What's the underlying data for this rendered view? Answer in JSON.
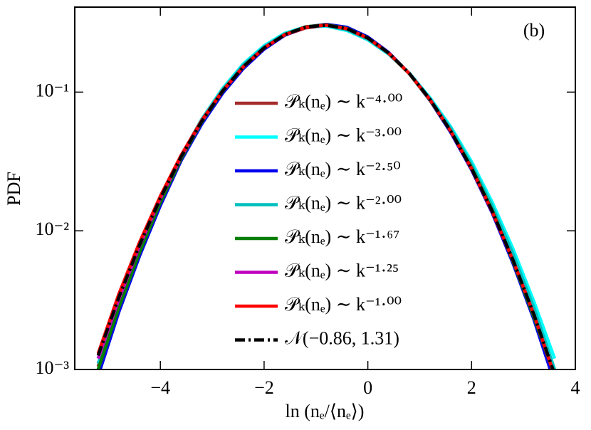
{
  "chart_data": {
    "type": "line",
    "annotation": "(b)",
    "xlabel": "ln (nₑ/⟨nₑ⟩)",
    "ylabel": "PDF",
    "x": [
      -5.2,
      -4.8,
      -4.4,
      -4.0,
      -3.6,
      -3.2,
      -2.8,
      -2.4,
      -2.0,
      -1.6,
      -1.2,
      -0.8,
      -0.4,
      0,
      0.4,
      0.8,
      1.2,
      1.6,
      2.0,
      2.4,
      2.8,
      3.2,
      3.6
    ],
    "series": [
      {
        "name": "𝒫ₖ(nₑ) ∼ k⁻⁴·⁰⁰",
        "color": "#a52a2a",
        "values": [
          0.00105,
          0.0029,
          0.0072,
          0.0165,
          0.0345,
          0.064,
          0.106,
          0.156,
          0.21,
          0.258,
          0.29,
          0.302,
          0.288,
          0.248,
          0.193,
          0.136,
          0.088,
          0.054,
          0.03,
          0.0145,
          0.0062,
          0.0024,
          0.0009
        ]
      },
      {
        "name": "𝒫ₖ(nₑ) ∼ k⁻³·⁰⁰",
        "color": "#00ffff",
        "values": [
          0.0012,
          0.0031,
          0.0075,
          0.0168,
          0.0345,
          0.064,
          0.106,
          0.16,
          0.216,
          0.266,
          0.296,
          0.299,
          0.278,
          0.238,
          0.188,
          0.137,
          0.091,
          0.056,
          0.0315,
          0.016,
          0.0074,
          0.0031,
          0.0012
        ]
      },
      {
        "name": "𝒫ₖ(nₑ) ∼ k⁻²·⁵⁰",
        "color": "#0000ee",
        "values": [
          0.0009,
          0.0026,
          0.0066,
          0.0152,
          0.032,
          0.059,
          0.098,
          0.148,
          0.204,
          0.257,
          0.295,
          0.308,
          0.293,
          0.25,
          0.193,
          0.136,
          0.087,
          0.051,
          0.0275,
          0.0134,
          0.0058,
          0.0023,
          0.0008
        ]
      },
      {
        "name": "𝒫ₖ(nₑ) ∼ k⁻²·⁰⁰",
        "color": "#00bfbf",
        "values": [
          0.0011,
          0.003,
          0.0073,
          0.0165,
          0.0338,
          0.0625,
          0.104,
          0.157,
          0.212,
          0.263,
          0.295,
          0.301,
          0.281,
          0.241,
          0.189,
          0.1365,
          0.0895,
          0.0545,
          0.03,
          0.015,
          0.0068,
          0.0028,
          0.001
        ]
      },
      {
        "name": "𝒫ₖ(nₑ) ∼ k⁻¹·⁶⁷",
        "color": "#007f00",
        "values": [
          0.001,
          0.0028,
          0.007,
          0.016,
          0.033,
          0.061,
          0.101,
          0.152,
          0.208,
          0.26,
          0.296,
          0.306,
          0.288,
          0.246,
          0.191,
          0.1355,
          0.0875,
          0.052,
          0.0285,
          0.014,
          0.006,
          0.0024,
          0.0009
        ]
      },
      {
        "name": "𝒫ₖ(nₑ) ∼ k⁻¹·²⁵",
        "color": "#bf00bf",
        "values": [
          0.0012,
          0.0032,
          0.0078,
          0.0171,
          0.034,
          0.0618,
          0.1015,
          0.1525,
          0.2085,
          0.2595,
          0.294,
          0.304,
          0.2865,
          0.2455,
          0.1915,
          0.1362,
          0.0882,
          0.052,
          0.028,
          0.0137,
          0.0061,
          0.0025,
          0.0009
        ]
      },
      {
        "name": "𝒫ₖ(nₑ) ∼ k⁻¹·⁰⁰",
        "color": "#ff0000",
        "values": [
          0.0013,
          0.0035,
          0.0083,
          0.0178,
          0.035,
          0.0628,
          0.1022,
          0.1525,
          0.208,
          0.259,
          0.294,
          0.304,
          0.286,
          0.245,
          0.191,
          0.136,
          0.088,
          0.052,
          0.028,
          0.0137,
          0.0061,
          0.0025,
          0.0009
        ]
      },
      {
        "name": "𝒩(−0.86, 1.31)",
        "color": "#000000",
        "style": "dashdot",
        "values": [
          0.00126,
          0.00331,
          0.00791,
          0.0172,
          0.0341,
          0.0618,
          0.1017,
          0.1526,
          0.2085,
          0.2595,
          0.2944,
          0.3042,
          0.2863,
          0.2455,
          0.1917,
          0.1364,
          0.0884,
          0.0522,
          0.0281,
          0.0138,
          0.00614,
          0.0025,
          0.000925
        ]
      }
    ],
    "xlim": [
      -5.65,
      4
    ],
    "ylim": [
      0.001,
      0.41
    ],
    "yscale": "log",
    "xticks": [
      {
        "value": -4,
        "label": "−4"
      },
      {
        "value": -2,
        "label": "−2"
      },
      0,
      2,
      4
    ],
    "yticks": [
      {
        "value": 0.001,
        "label": "10⁻³"
      },
      {
        "value": 0.01,
        "label": "10⁻²"
      },
      {
        "value": 0.1,
        "label": "10⁻¹"
      }
    ],
    "legend": "center"
  }
}
